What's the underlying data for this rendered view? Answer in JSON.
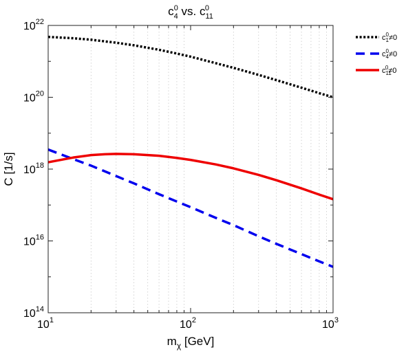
{
  "chart_data": {
    "type": "line",
    "title": "c40 vs. c110",
    "title_parts": {
      "prefix": "c",
      "sub1": "4",
      "sup1": "0",
      "mid": " vs. c",
      "sub2": "11",
      "sup2": "0"
    },
    "xlabel": "m",
    "xlabel_sub": "χ",
    "xlabel_unit": " [GeV]",
    "ylabel": "C [1/s]",
    "x_scale": "log",
    "y_scale": "log",
    "xlim": [
      10,
      1000
    ],
    "ylim": [
      100000000000000.0,
      1e+22
    ],
    "x_ticks": [
      {
        "value": 10,
        "base": "10",
        "exp": "1"
      },
      {
        "value": 100,
        "base": "10",
        "exp": "2"
      },
      {
        "value": 1000,
        "base": "10",
        "exp": "3"
      }
    ],
    "y_ticks": [
      {
        "value": 100000000000000.0,
        "base": "10",
        "exp": "14"
      },
      {
        "value": 1e+16,
        "base": "10",
        "exp": "16"
      },
      {
        "value": 1e+18,
        "base": "10",
        "exp": "18"
      },
      {
        "value": 1e+20,
        "base": "10",
        "exp": "20"
      },
      {
        "value": 1e+22,
        "base": "10",
        "exp": "22"
      }
    ],
    "grid": "x-minor-dotted",
    "legend_position": "outside-top-right",
    "series": [
      {
        "name": "c10≠0",
        "label_parts": {
          "prefix": "c",
          "sub": "1",
          "sup": "0",
          "suffix": "≠0"
        },
        "color": "#000000",
        "style": "dotted",
        "x": [
          10,
          15,
          20,
          30,
          40,
          60,
          80,
          100,
          150,
          200,
          300,
          400,
          600,
          800,
          1000
        ],
        "y": [
          4.8e+21,
          4.4e+21,
          4e+21,
          3.3e+21,
          2.8e+21,
          2.1e+21,
          1.65e+21,
          1.35e+21,
          8.9e+20,
          6.6e+20,
          4.2e+20,
          3e+20,
          1.85e+20,
          1.3e+20,
          1e+20
        ]
      },
      {
        "name": "c40≠0",
        "label_parts": {
          "prefix": "c",
          "sub": "4",
          "sup": "0",
          "suffix": "≠0"
        },
        "color": "#0000ee",
        "style": "dashed",
        "x": [
          10,
          15,
          20,
          30,
          40,
          60,
          80,
          100,
          150,
          200,
          300,
          400,
          600,
          800,
          1000
        ],
        "y": [
          3.5e+18,
          1.9e+18,
          1.25e+18,
          6.4e+17,
          4e+17,
          2e+17,
          1.25e+17,
          8.7e+16,
          4.4e+16,
          2.75e+16,
          1.35e+16,
          8300000000000000.0,
          4300000000000000.0,
          2700000000000000.0,
          1900000000000000.0
        ]
      },
      {
        "name": "c110≠0",
        "label_parts": {
          "prefix": "c",
          "sub": "11",
          "sup": "0",
          "suffix": "≠0"
        },
        "color": "#ee0000",
        "style": "solid",
        "x": [
          10,
          15,
          20,
          25,
          30,
          40,
          60,
          80,
          100,
          150,
          200,
          300,
          400,
          600,
          800,
          1000
        ],
        "y": [
          1.55e+18,
          2.1e+18,
          2.45e+18,
          2.6e+18,
          2.65e+18,
          2.6e+18,
          2.35e+18,
          2.05e+18,
          1.8e+18,
          1.35e+18,
          1.05e+18,
          6.9e+17,
          4.9e+17,
          2.9e+17,
          1.95e+17,
          1.45e+17
        ]
      }
    ]
  }
}
